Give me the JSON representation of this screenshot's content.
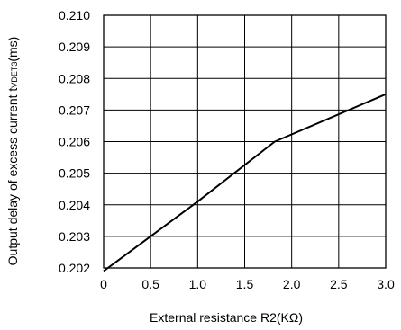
{
  "chart_data": {
    "type": "line",
    "title": "",
    "xlabel": "External resistance R2(KΩ)",
    "ylabel": {
      "main": "Output delay of  excess current  t",
      "subscript": "VDET3",
      "suffix": "(ms)"
    },
    "xlim": [
      0,
      3.0
    ],
    "ylim": [
      0.202,
      0.21
    ],
    "xticks": [
      "0",
      "0.5",
      "1.0",
      "1.5",
      "2.0",
      "2.5",
      "3.0"
    ],
    "xtick_values": [
      0,
      0.5,
      1.0,
      1.5,
      2.0,
      2.5,
      3.0
    ],
    "yticks": [
      "0.202",
      "0.203",
      "0.204",
      "0.205",
      "0.206",
      "0.207",
      "0.208",
      "0.209",
      "0.210"
    ],
    "ytick_values": [
      0.202,
      0.203,
      0.204,
      0.205,
      0.206,
      0.207,
      0.208,
      0.209,
      0.21
    ],
    "grid": true,
    "series": [
      {
        "color": "#000000",
        "x": [
          0,
          1.0,
          1.82,
          3.0
        ],
        "y": [
          0.2019,
          0.2041,
          0.206,
          0.2075
        ]
      }
    ]
  }
}
